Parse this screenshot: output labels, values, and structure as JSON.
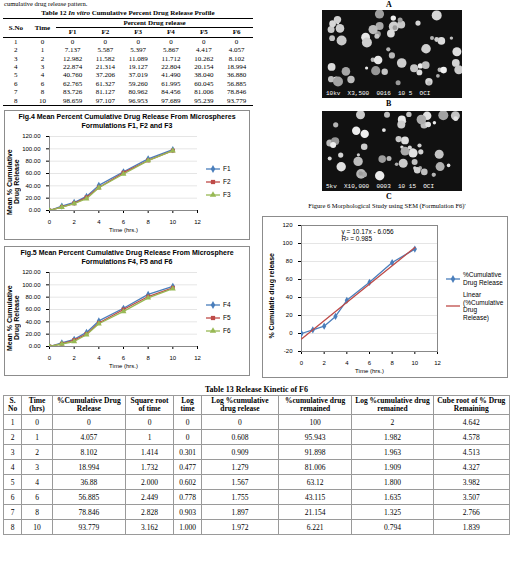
{
  "header": {
    "text": "cumulative drug release pattern."
  },
  "table12": {
    "label": "Table 12",
    "title_italic": "In vitro",
    "title": "Cumulative Percent Drug Release Profile",
    "columns": [
      "S.No",
      "Time"
    ],
    "group_head": "Percent Drug release",
    "sub_columns": [
      "F1",
      "F2",
      "F3",
      "F4",
      "F5",
      "F6"
    ],
    "rows": [
      [
        "1",
        "0",
        "0",
        "0",
        "0",
        "0",
        "0",
        "0"
      ],
      [
        "2",
        "1",
        "7.137",
        "5.587",
        "5.397",
        "5.867",
        "4.417",
        "4.057"
      ],
      [
        "3",
        "2",
        "12.982",
        "11.582",
        "11.089",
        "11.712",
        "10.262",
        "8.102"
      ],
      [
        "4",
        "3",
        "22.874",
        "21.314",
        "19.127",
        "22.804",
        "20.154",
        "18.994"
      ],
      [
        "5",
        "4",
        "40.760",
        "37.206",
        "37.019",
        "41.490",
        "38.040",
        "36.880"
      ],
      [
        "6",
        "6",
        "62.765",
        "61.327",
        "59.260",
        "61.995",
        "60.045",
        "56.885"
      ],
      [
        "7",
        "8",
        "83.726",
        "81.127",
        "80.962",
        "84.456",
        "81.006",
        "78.846"
      ],
      [
        "8",
        "10",
        "98.659",
        "97.107",
        "96.953",
        "97.689",
        "95.239",
        "93.779"
      ]
    ]
  },
  "figure6": {
    "labels": [
      "A",
      "B",
      "C"
    ],
    "image_texts": [
      "10kv  X3,500  0016  10 5  OCI",
      "5kv  X10,000  0003  10 15  OCI"
    ],
    "caption": "Figure 6 Morphological Study using SEM (Formulation F6)'"
  },
  "chart_data": [
    {
      "type": "line",
      "title": "Fig.4 Mean Percent Cumulative Drug Release From Microspheres Formulations F1, F2 and F3",
      "xlabel": "Time (hrs.)",
      "ylabel": "Mean % Cumulative Drug Release",
      "x": [
        0,
        1,
        2,
        3,
        4,
        6,
        8,
        10
      ],
      "series": [
        {
          "name": "F1",
          "color": "#4a7ebb",
          "marker": "diamond",
          "values": [
            0,
            7.137,
            12.982,
            22.874,
            40.76,
            62.765,
            83.726,
            98.659
          ]
        },
        {
          "name": "F2",
          "color": "#be4b48",
          "marker": "square",
          "values": [
            0,
            5.587,
            11.582,
            21.314,
            37.206,
            61.327,
            81.127,
            97.107
          ]
        },
        {
          "name": "F3",
          "color": "#98b954",
          "marker": "triangle",
          "values": [
            0,
            5.397,
            11.089,
            19.127,
            37.019,
            59.26,
            80.962,
            96.953
          ]
        }
      ],
      "xlim": [
        0,
        12
      ],
      "xticks": [
        0,
        2,
        4,
        6,
        8,
        10,
        12
      ],
      "ylim": [
        0,
        120
      ],
      "yticks": [
        {
          "value": 0,
          "label": "0.00"
        },
        {
          "value": 20,
          "label": "20.00"
        },
        {
          "value": 40,
          "label": "40.00"
        },
        {
          "value": 60,
          "label": "60.00"
        },
        {
          "value": 80,
          "label": "80.00"
        },
        {
          "value": 100,
          "label": "100.00"
        },
        {
          "value": 120,
          "label": "120.00"
        }
      ],
      "grid": true,
      "legend": "right"
    },
    {
      "type": "line",
      "title": "Fig.5 Mean Percent Cumulative Drug Release From Microsphere Formulations F4, F5 and F6",
      "xlabel": "Time (hrs.)",
      "ylabel": "Mean % Cumulative Drug Release",
      "x": [
        0,
        1,
        2,
        3,
        4,
        6,
        8,
        10
      ],
      "series": [
        {
          "name": "F4",
          "color": "#4a7ebb",
          "marker": "diamond",
          "values": [
            0,
            5.867,
            11.712,
            22.804,
            41.49,
            61.995,
            84.456,
            97.689
          ]
        },
        {
          "name": "F5",
          "color": "#be4b48",
          "marker": "square",
          "values": [
            0,
            4.417,
            10.262,
            20.154,
            38.04,
            60.045,
            81.006,
            95.239
          ]
        },
        {
          "name": "F6",
          "color": "#98b954",
          "marker": "triangle",
          "values": [
            0,
            4.057,
            8.102,
            18.994,
            36.88,
            56.885,
            78.846,
            93.779
          ]
        }
      ],
      "xlim": [
        0,
        12
      ],
      "xticks": [
        0,
        2,
        4,
        6,
        8,
        10,
        12
      ],
      "ylim": [
        0,
        120
      ],
      "yticks": [
        {
          "value": 0,
          "label": "0.00"
        },
        {
          "value": 20,
          "label": "20.00"
        },
        {
          "value": 40,
          "label": "40.00"
        },
        {
          "value": 60,
          "label": "60.00"
        },
        {
          "value": 80,
          "label": "80.00"
        },
        {
          "value": 100,
          "label": "100.00"
        },
        {
          "value": 120,
          "label": "120.00"
        }
      ],
      "grid": true,
      "legend": "right"
    },
    {
      "type": "line",
      "xlabel": "Time (hrs.)",
      "ylabel": "% Cumulatie drug release",
      "x": [
        0,
        1,
        2,
        3,
        4,
        6,
        8,
        10
      ],
      "series": [
        {
          "name": "%Cumulative Drug Release",
          "color": "#4a7ebb",
          "marker": "diamond",
          "values": [
            0,
            4.057,
            8.102,
            18.994,
            36.88,
            56.885,
            78.846,
            93.779
          ]
        },
        {
          "name": "Linear (%Cumulative Drug Release)",
          "color": "#be4b48",
          "marker": "none",
          "x": [
            0,
            10
          ],
          "values": [
            -6,
            95.6
          ]
        }
      ],
      "annotations": [
        "y = 10.17x - 6.056",
        "R² = 0.985"
      ],
      "xlim": [
        0,
        12
      ],
      "xticks": [
        0,
        2,
        4,
        6,
        8,
        10,
        12
      ],
      "ylim": [
        -20,
        120
      ],
      "yticks": [
        -20,
        0,
        20,
        40,
        60,
        80,
        100,
        120
      ],
      "grid": true,
      "legend": "right"
    }
  ],
  "table13": {
    "title": "Table 13 Release Kinetic of F6",
    "columns": [
      "S. No",
      "Time (hrs)",
      "%Cumulative Drug Release",
      "Square root of time",
      "Log time",
      "Log %cumulative drug release",
      "%cumulative drug remained",
      "Log %cumulative drug remained",
      "Cube root of % Drug Remaining"
    ],
    "rows": [
      [
        "1",
        "0",
        "0",
        "0",
        "0",
        "0",
        "100",
        "2",
        "4.642"
      ],
      [
        "2",
        "1",
        "4.057",
        "1",
        "0",
        "0.608",
        "95.943",
        "1.982",
        "4.578"
      ],
      [
        "3",
        "2",
        "8.102",
        "1.414",
        "0.301",
        "0.909",
        "91.898",
        "1.963",
        "4.513"
      ],
      [
        "4",
        "3",
        "18.994",
        "1.732",
        "0.477",
        "1.279",
        "81.006",
        "1.909",
        "4.327"
      ],
      [
        "5",
        "4",
        "36.88",
        "2.000",
        "0.602",
        "1.567",
        "63.12",
        "1.800",
        "3.982"
      ],
      [
        "6",
        "6",
        "56.885",
        "2.449",
        "0.778",
        "1.755",
        "43.115",
        "1.635",
        "3.507"
      ],
      [
        "7",
        "8",
        "78.846",
        "2.828",
        "0.903",
        "1.897",
        "21.154",
        "1.325",
        "2.766"
      ],
      [
        "8",
        "10",
        "93.779",
        "3.162",
        "1.000",
        "1.972",
        "6.221",
        "0.794",
        "1.839"
      ]
    ]
  }
}
